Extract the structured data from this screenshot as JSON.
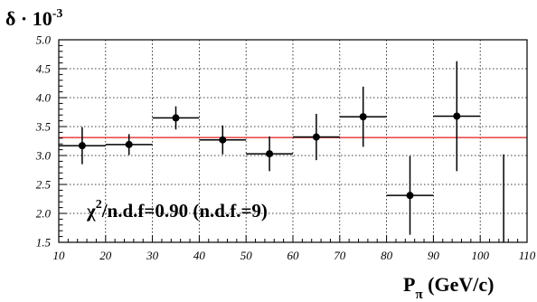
{
  "chart_data": {
    "type": "scatter",
    "ylabel": {
      "text": "δ · 10",
      "sup": "-3"
    },
    "xlabel": {
      "text": "P",
      "sub": "π",
      "unit": " (GeV/c)"
    },
    "annotation": {
      "chi": "χ",
      "sup": "2",
      "rest": "/n.d.f=0.90  (n.d.f.=9)"
    },
    "xlim": [
      10,
      110
    ],
    "ylim": [
      1.5,
      5.0
    ],
    "x_ticks": [
      "10",
      "20",
      "30",
      "40",
      "50",
      "60",
      "70",
      "80",
      "90",
      "100",
      "110"
    ],
    "y_ticks": [
      "1.5",
      "2.0",
      "2.5",
      "3.0",
      "3.5",
      "4.0",
      "4.5",
      "5.0"
    ],
    "grid": true,
    "fit_line": {
      "y": 3.31,
      "color": "#e41a1c"
    },
    "points": [
      {
        "x": 15,
        "y": 3.17,
        "xerr": 5,
        "yerr": 0.32
      },
      {
        "x": 25,
        "y": 3.19,
        "xerr": 5,
        "yerr": 0.18
      },
      {
        "x": 35,
        "y": 3.65,
        "xerr": 5,
        "yerr": 0.2
      },
      {
        "x": 45,
        "y": 3.27,
        "xerr": 5,
        "yerr": 0.25
      },
      {
        "x": 55,
        "y": 3.03,
        "xerr": 5,
        "yerr": 0.3
      },
      {
        "x": 65,
        "y": 3.32,
        "xerr": 5,
        "yerr": 0.4
      },
      {
        "x": 75,
        "y": 3.67,
        "xerr": 5,
        "yerr": 0.52
      },
      {
        "x": 85,
        "y": 2.31,
        "xerr": 5,
        "yerr": 0.68
      },
      {
        "x": 95,
        "y": 3.68,
        "xerr": 5,
        "yerr": 0.95
      },
      {
        "x": 105,
        "y": 1.5,
        "xerr": 0,
        "yerr": 1.52,
        "marker": false
      }
    ]
  }
}
